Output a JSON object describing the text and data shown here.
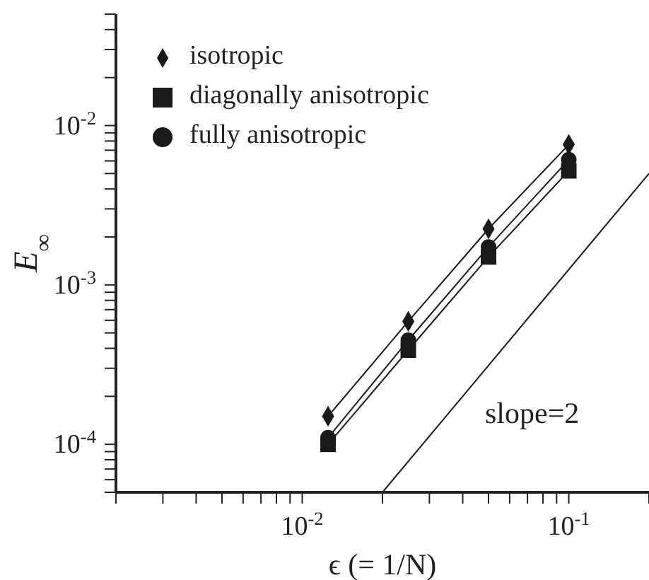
{
  "chart_data": {
    "type": "line",
    "xlabel": "ϵ (= 1/N)",
    "ylabel": "E$_{∞}$",
    "log": "xy",
    "grid": false,
    "legend": "top left",
    "xlim": [
      0.002,
      0.2
    ],
    "ylim": [
      5e-05,
      0.05
    ],
    "xticks": [
      {
        "value": 0.002,
        "label": null
      },
      {
        "value": 0.003,
        "label": null
      },
      {
        "value": 0.004,
        "label": null
      },
      {
        "value": 0.005,
        "label": null
      },
      {
        "value": 0.006,
        "label": null
      },
      {
        "value": 0.007,
        "label": null
      },
      {
        "value": 0.008,
        "label": null
      },
      {
        "value": 0.009,
        "label": null
      },
      {
        "value": 0.01,
        "label": "10$^{-2}$"
      },
      {
        "value": 0.02,
        "label": null
      },
      {
        "value": 0.03,
        "label": null
      },
      {
        "value": 0.04,
        "label": null
      },
      {
        "value": 0.05,
        "label": null
      },
      {
        "value": 0.06,
        "label": null
      },
      {
        "value": 0.07,
        "label": null
      },
      {
        "value": 0.08,
        "label": null
      },
      {
        "value": 0.09,
        "label": null
      },
      {
        "value": 0.1,
        "label": "10$^{-1}$"
      },
      {
        "value": 0.2,
        "label": null
      }
    ],
    "yticks": [
      {
        "value": 5e-05,
        "label": null
      },
      {
        "value": 6e-05,
        "label": null
      },
      {
        "value": 7e-05,
        "label": null
      },
      {
        "value": 8e-05,
        "label": null
      },
      {
        "value": 9e-05,
        "label": null
      },
      {
        "value": 0.0001,
        "label": "10$^{-4}$"
      },
      {
        "value": 0.0002,
        "label": null
      },
      {
        "value": 0.0003,
        "label": null
      },
      {
        "value": 0.0004,
        "label": null
      },
      {
        "value": 0.0005,
        "label": null
      },
      {
        "value": 0.0006,
        "label": null
      },
      {
        "value": 0.0007,
        "label": null
      },
      {
        "value": 0.0008,
        "label": null
      },
      {
        "value": 0.0009,
        "label": null
      },
      {
        "value": 0.001,
        "label": "10$^{-3}$"
      },
      {
        "value": 0.002,
        "label": null
      },
      {
        "value": 0.003,
        "label": null
      },
      {
        "value": 0.004,
        "label": null
      },
      {
        "value": 0.005,
        "label": null
      },
      {
        "value": 0.006,
        "label": null
      },
      {
        "value": 0.007,
        "label": null
      },
      {
        "value": 0.008,
        "label": null
      },
      {
        "value": 0.009,
        "label": null
      },
      {
        "value": 0.01,
        "label": "10$^{-2}$"
      },
      {
        "value": 0.02,
        "label": null
      },
      {
        "value": 0.03,
        "label": null
      },
      {
        "value": 0.04,
        "label": null
      },
      {
        "value": 0.05,
        "label": null
      }
    ],
    "x": [
      0.0125,
      0.025,
      0.05,
      0.1
    ],
    "series": [
      {
        "name": "isotropic",
        "color": "#1a1a1a",
        "marker": "diamond",
        "values": [
          0.00015,
          0.00059,
          0.00225,
          0.0076
        ]
      },
      {
        "name": "diagonally anisotropic",
        "color": "#1a1a1a",
        "marker": "square",
        "values": [
          0.0001,
          0.00039,
          0.0015,
          0.0052
        ]
      },
      {
        "name": "fully anisotropic",
        "color": "#1a1a1a",
        "marker": "circle",
        "values": [
          0.00011,
          0.00045,
          0.00173,
          0.0061
        ]
      },
      {
        "type": "line",
        "color": "#1a1a1a",
        "marker": "none",
        "x": [
          0.02,
          0.2
        ],
        "values": [
          5e-05,
          0.005
        ]
      }
    ],
    "annotations": [
      "slope=2"
    ]
  }
}
